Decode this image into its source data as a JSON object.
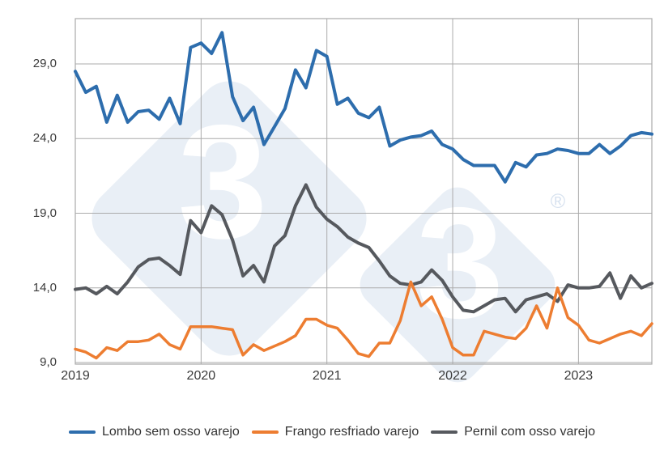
{
  "watermark": {
    "glyph": "3",
    "registered_mark": "®",
    "color": "#E9EFF6",
    "mark_color": "#D6E1EF"
  },
  "colors": {
    "background": "#FFFFFF",
    "grid": "#ABABAB",
    "text": "#3A3A3A",
    "lombo": "#2D6DAD",
    "frango": "#ED7D31",
    "pernil": "#56595E"
  },
  "y_axis": {
    "ticks": [
      {
        "label": "29,0",
        "value": 29
      },
      {
        "label": "24,0",
        "value": 24
      },
      {
        "label": "19,0",
        "value": 19
      },
      {
        "label": "14,0",
        "value": 14
      },
      {
        "label": "9,0",
        "value": 9
      }
    ]
  },
  "x_axis": {
    "ticks": [
      {
        "label": "2019",
        "month_index": 0
      },
      {
        "label": "2020",
        "month_index": 12
      },
      {
        "label": "2021",
        "month_index": 24
      },
      {
        "label": "2022",
        "month_index": 36
      },
      {
        "label": "2023",
        "month_index": 48
      }
    ]
  },
  "legend": {
    "items": [
      {
        "label": "Lombo sem osso varejo",
        "color": "#2D6DAD"
      },
      {
        "label": "Frango resfriado varejo",
        "color": "#ED7D31"
      },
      {
        "label": "Pernil com osso varejo",
        "color": "#56595E"
      }
    ]
  },
  "chart_data": {
    "type": "line",
    "title": "",
    "xlabel": "",
    "ylabel": "",
    "grid": true,
    "legend_position": "bottom",
    "ylim": [
      8.9,
      32.1
    ],
    "y_ticks": [
      9,
      14,
      19,
      24,
      29
    ],
    "x_tick_labels": [
      "2019",
      "2020",
      "2021",
      "2022",
      "2023"
    ],
    "decimal_separator": ",",
    "x": [
      "2019-01",
      "2019-02",
      "2019-03",
      "2019-04",
      "2019-05",
      "2019-06",
      "2019-07",
      "2019-08",
      "2019-09",
      "2019-10",
      "2019-11",
      "2019-12",
      "2020-01",
      "2020-02",
      "2020-03",
      "2020-04",
      "2020-05",
      "2020-06",
      "2020-07",
      "2020-08",
      "2020-09",
      "2020-10",
      "2020-11",
      "2020-12",
      "2021-01",
      "2021-02",
      "2021-03",
      "2021-04",
      "2021-05",
      "2021-06",
      "2021-07",
      "2021-08",
      "2021-09",
      "2021-10",
      "2021-11",
      "2021-12",
      "2022-01",
      "2022-02",
      "2022-03",
      "2022-04",
      "2022-05",
      "2022-06",
      "2022-07",
      "2022-08",
      "2022-09",
      "2022-10",
      "2022-11",
      "2022-12",
      "2023-01",
      "2023-02",
      "2023-03",
      "2023-04",
      "2023-05",
      "2023-06",
      "2023-07",
      "2023-08"
    ],
    "series": [
      {
        "name": "Lombo sem osso varejo",
        "color": "#2D6DAD",
        "stroke_width": 4,
        "values": [
          28.5,
          27.1,
          27.5,
          25.1,
          26.9,
          25.1,
          25.8,
          25.9,
          25.3,
          26.7,
          25.0,
          30.1,
          30.4,
          29.7,
          31.1,
          26.8,
          25.2,
          26.1,
          23.6,
          24.8,
          26.0,
          28.6,
          27.4,
          29.9,
          29.5,
          26.3,
          26.7,
          25.7,
          25.4,
          26.1,
          23.5,
          23.9,
          24.1,
          24.2,
          24.5,
          23.6,
          23.3,
          22.6,
          22.2,
          22.2,
          22.2,
          21.1,
          22.4,
          22.1,
          22.9,
          23.0,
          23.3,
          23.2,
          23.0,
          23.0,
          23.6,
          23.0,
          23.5,
          24.2,
          24.4,
          24.3
        ]
      },
      {
        "name": "Frango resfriado varejo",
        "color": "#ED7D31",
        "stroke_width": 3.5,
        "values": [
          9.9,
          9.7,
          9.3,
          10.0,
          9.8,
          10.4,
          10.4,
          10.5,
          10.9,
          10.2,
          9.9,
          11.4,
          11.4,
          11.4,
          11.3,
          11.2,
          9.5,
          10.2,
          9.8,
          10.1,
          10.4,
          10.8,
          11.9,
          11.9,
          11.5,
          11.3,
          10.5,
          9.6,
          9.4,
          10.3,
          10.3,
          11.8,
          14.4,
          12.8,
          13.4,
          11.9,
          10.0,
          9.5,
          9.5,
          11.1,
          10.9,
          10.7,
          10.6,
          11.3,
          12.8,
          11.3,
          14.0,
          12.0,
          11.5,
          10.5,
          10.3,
          10.6,
          10.9,
          11.1,
          10.8,
          11.6
        ]
      },
      {
        "name": "Pernil com osso varejo",
        "color": "#56595E",
        "stroke_width": 4,
        "values": [
          13.9,
          14.0,
          13.6,
          14.1,
          13.6,
          14.4,
          15.4,
          15.9,
          16.0,
          15.5,
          14.9,
          18.5,
          17.7,
          19.5,
          18.9,
          17.2,
          14.8,
          15.5,
          14.4,
          16.8,
          17.5,
          19.5,
          20.9,
          19.4,
          18.6,
          18.1,
          17.4,
          17.0,
          16.7,
          15.8,
          14.8,
          14.3,
          14.2,
          14.4,
          15.2,
          14.5,
          13.4,
          12.5,
          12.4,
          12.8,
          13.2,
          13.3,
          12.4,
          13.2,
          13.4,
          13.6,
          13.1,
          14.2,
          14.0,
          14.0,
          14.1,
          15.0,
          13.3,
          14.8,
          14.0,
          14.3
        ]
      }
    ]
  }
}
